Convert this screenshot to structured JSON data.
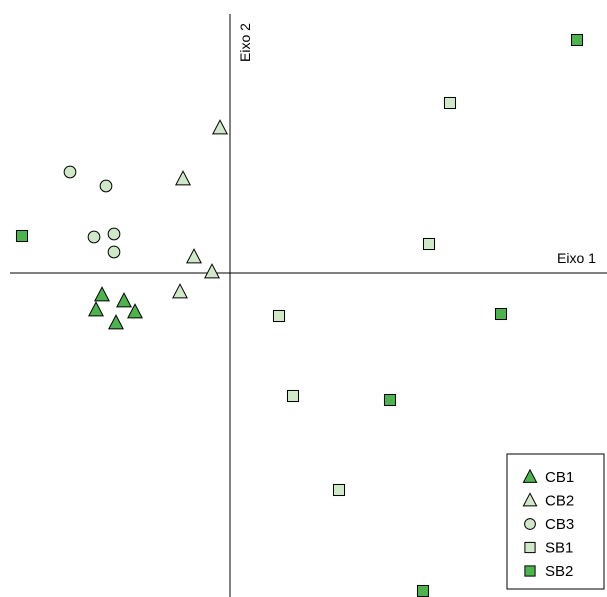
{
  "chart_data": {
    "type": "scatter",
    "xlabel": "Eixo 1",
    "ylabel": "Eixo 2",
    "xlim": [
      -2.2,
      3.8
    ],
    "ylim": [
      -3.25,
      2.7
    ],
    "grid": false,
    "legend_position": "bottom-right",
    "series": [
      {
        "name": "CB1",
        "marker": "triangle",
        "color": "#4db34d",
        "points": [
          [
            -1.28,
            -0.22
          ],
          [
            -1.34,
            -0.37
          ],
          [
            -1.06,
            -0.28
          ],
          [
            -0.95,
            -0.39
          ],
          [
            -1.14,
            -0.5
          ]
        ]
      },
      {
        "name": "CB2",
        "marker": "triangle",
        "color": "#cfe8c8",
        "points": [
          [
            -0.1,
            1.45
          ],
          [
            -0.47,
            0.94
          ],
          [
            -0.36,
            0.16
          ],
          [
            -0.18,
            0.01
          ],
          [
            -0.5,
            -0.19
          ]
        ]
      },
      {
        "name": "CB3",
        "marker": "circle",
        "color": "#cfe8c8",
        "points": [
          [
            -1.6,
            1.01
          ],
          [
            -1.24,
            0.87
          ],
          [
            -1.16,
            0.39
          ],
          [
            -1.36,
            0.36
          ],
          [
            -1.16,
            0.21
          ]
        ]
      },
      {
        "name": "SB1",
        "marker": "square",
        "color": "#cfe8c8",
        "points": [
          [
            2.2,
            1.7
          ],
          [
            1.99,
            0.29
          ],
          [
            0.49,
            -0.43
          ],
          [
            0.63,
            -1.23
          ],
          [
            1.09,
            -2.17
          ]
        ]
      },
      {
        "name": "SB2",
        "marker": "square",
        "color": "#4db34d",
        "points": [
          [
            3.47,
            2.33
          ],
          [
            -2.08,
            0.37
          ],
          [
            2.71,
            -0.41
          ],
          [
            1.6,
            -1.27
          ],
          [
            1.93,
            -3.18
          ]
        ]
      }
    ]
  }
}
